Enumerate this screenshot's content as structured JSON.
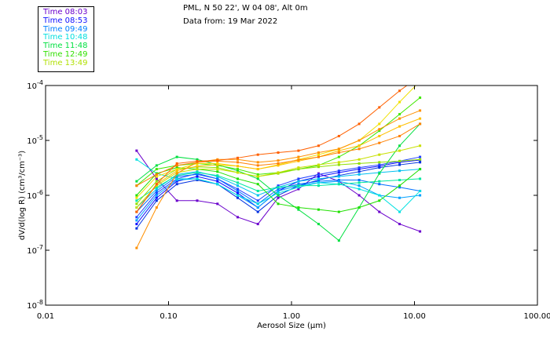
{
  "header": {
    "location": "PML, N 50 22', W 04 08', Alt 0m",
    "date": "Data from: 19 Mar 2022"
  },
  "legend": [
    {
      "label": "Time 08:03",
      "color": "#6a00cc"
    },
    {
      "label": "Time 08:53",
      "color": "#1010ff"
    },
    {
      "label": "Time 09:49",
      "color": "#0080ff"
    },
    {
      "label": "Time 10:48",
      "color": "#00dede"
    },
    {
      "label": "Time 11:48",
      "color": "#00e040"
    },
    {
      "label": "Time 12:49",
      "color": "#30e000"
    },
    {
      "label": "Time 13:49",
      "color": "#b0e000"
    }
  ],
  "chart_data": {
    "type": "line",
    "xlabel": "Aerosol Size (μm)",
    "ylabel": "dV/d(log R) (cm³/cm⁻³)",
    "xscale": "log",
    "yscale": "log",
    "xlim": [
      0.01,
      100
    ],
    "ylim": [
      1e-08,
      0.0001
    ],
    "x_ticks": [
      "0.01",
      "0.10",
      "1.00",
      "10.00",
      "100.00"
    ],
    "y_ticks": [
      {
        "base": "10",
        "exp": "-8"
      },
      {
        "base": "10",
        "exp": "-7"
      },
      {
        "base": "10",
        "exp": "-6"
      },
      {
        "base": "10",
        "exp": "-5"
      },
      {
        "base": "10",
        "exp": "-4"
      }
    ],
    "value_multiplier": 1e-06,
    "x": [
      0.055,
      0.08,
      0.117,
      0.171,
      0.25,
      0.365,
      0.533,
      0.779,
      1.14,
      1.66,
      2.43,
      3.55,
      5.18,
      7.57,
      11.1
    ],
    "series": [
      {
        "color": "#6a00cc",
        "values": [
          6.5,
          2.0,
          0.8,
          0.8,
          0.7,
          0.4,
          0.3,
          0.9,
          1.3,
          2.5,
          1.8,
          1.0,
          0.5,
          0.3,
          0.22
        ]
      },
      {
        "color": "#1010ff",
        "values": [
          0.3,
          0.9,
          1.8,
          2.2,
          1.8,
          1.1,
          0.6,
          1.2,
          1.8,
          2.2,
          2.6,
          3.0,
          3.4,
          4.0,
          4.4
        ]
      },
      {
        "color": "#2040ff",
        "values": [
          0.4,
          1.1,
          2.0,
          2.5,
          2.0,
          1.3,
          0.8,
          1.5,
          2.0,
          2.4,
          2.8,
          3.2,
          3.6,
          4.2,
          5.0
        ]
      },
      {
        "color": "#0030e0",
        "values": [
          0.25,
          0.8,
          1.6,
          1.9,
          1.6,
          0.9,
          0.5,
          1.0,
          1.5,
          1.9,
          2.3,
          2.7,
          3.2,
          3.6,
          4.0
        ]
      },
      {
        "color": "#0070ff",
        "values": [
          0.5,
          1.2,
          2.2,
          2.4,
          2.0,
          1.2,
          0.7,
          1.3,
          1.6,
          1.8,
          1.9,
          1.9,
          1.6,
          1.4,
          1.2
        ]
      },
      {
        "color": "#00a0ff",
        "values": [
          0.35,
          1.0,
          1.9,
          2.0,
          1.6,
          1.0,
          0.6,
          1.2,
          1.5,
          1.7,
          1.8,
          1.5,
          1.0,
          0.9,
          1.0
        ]
      },
      {
        "color": "#00c0f0",
        "values": [
          0.6,
          1.3,
          2.4,
          2.7,
          2.2,
          1.5,
          1.0,
          1.4,
          1.8,
          2.0,
          2.2,
          2.4,
          2.6,
          2.8,
          3.0
        ]
      },
      {
        "color": "#00e0e0",
        "values": [
          4.5,
          2.5,
          2.0,
          2.0,
          1.6,
          1.0,
          0.7,
          1.1,
          1.4,
          1.7,
          1.6,
          1.3,
          1.0,
          0.5,
          1.2
        ]
      },
      {
        "color": "#00e8a0",
        "values": [
          0.8,
          1.4,
          2.3,
          2.6,
          2.3,
          1.7,
          1.2,
          1.4,
          1.5,
          1.5,
          1.6,
          1.7,
          1.8,
          1.9,
          2.0
        ]
      },
      {
        "color": "#00e040",
        "values": [
          1.8,
          3.5,
          5.0,
          4.5,
          3.6,
          2.8,
          2.0,
          1.0,
          0.55,
          0.3,
          0.15,
          0.6,
          2.5,
          8,
          20
        ]
      },
      {
        "color": "#20e000",
        "values": [
          1.0,
          2.5,
          3.2,
          3.0,
          2.7,
          2.0,
          1.6,
          0.7,
          0.6,
          0.55,
          0.5,
          0.6,
          0.8,
          1.5,
          3
        ]
      },
      {
        "color": "#40e800",
        "values": [
          1.5,
          3.0,
          3.5,
          3.8,
          3.5,
          3.0,
          2.4,
          2.6,
          3.0,
          3.5,
          5.0,
          8,
          15,
          30,
          60
        ]
      },
      {
        "color": "#90e000",
        "values": [
          0.7,
          1.8,
          3.0,
          3.3,
          3.2,
          2.6,
          2.2,
          2.5,
          3.0,
          3.3,
          3.6,
          3.8,
          4.0,
          4.2,
          4.5
        ]
      },
      {
        "color": "#c8e000",
        "values": [
          0.6,
          1.5,
          2.6,
          3.0,
          3.0,
          2.6,
          2.2,
          2.6,
          3.2,
          3.6,
          4.0,
          4.5,
          5.5,
          6.5,
          8
        ]
      },
      {
        "color": "#f0e000",
        "values": [
          0.9,
          2.2,
          3.0,
          3.8,
          3.8,
          3.4,
          3.0,
          3.6,
          4.5,
          5.5,
          7,
          10,
          20,
          50,
          120
        ]
      },
      {
        "color": "#ffc000",
        "values": [
          0.5,
          1.6,
          2.8,
          3.4,
          3.6,
          3.4,
          3.0,
          3.5,
          4.2,
          5.0,
          6.5,
          8,
          12,
          18,
          25
        ]
      },
      {
        "color": "#ff9000",
        "values": [
          0.11,
          0.6,
          2.5,
          4.0,
          4.5,
          4.5,
          4.0,
          4.3,
          5,
          6,
          7,
          10,
          16,
          25,
          35
        ]
      },
      {
        "color": "#ff8000",
        "values": [
          1.5,
          2.4,
          3.5,
          4.0,
          4.2,
          4.0,
          3.5,
          3.8,
          4.4,
          5,
          6,
          7,
          9,
          12,
          20
        ]
      },
      {
        "color": "#ff6000",
        "values": [
          0.5,
          1.6,
          3.8,
          4.2,
          4.3,
          4.8,
          5.5,
          6.0,
          6.5,
          8,
          12,
          20,
          40,
          80,
          150
        ]
      }
    ]
  }
}
